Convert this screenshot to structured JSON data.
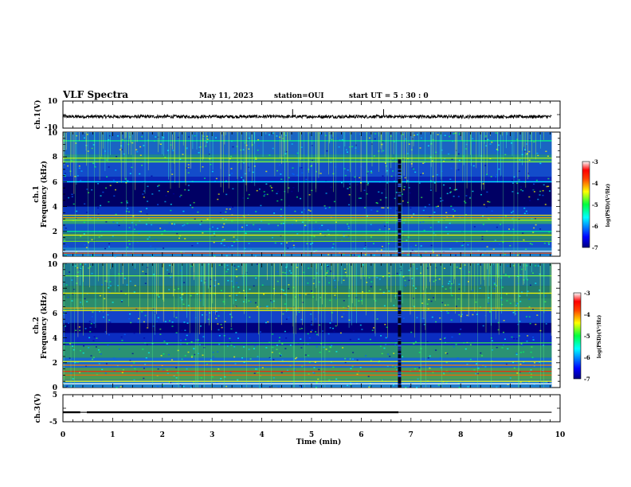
{
  "header": {
    "title": "VLF Spectra",
    "date": "May 11, 2023",
    "station": "station=OUI",
    "start": "start  UT =   5 : 30 : 0"
  },
  "chart_data": [
    {
      "type": "line",
      "name": "ch1-waveform",
      "ylabel": "ch.1(V)",
      "ylim": [
        -10,
        10
      ],
      "ytick_labels": [
        "10",
        "-10"
      ],
      "baseline": -1.5,
      "noise_amplitude": 1.2,
      "spikes": [
        {
          "t": 4.62,
          "v": 4
        },
        {
          "t": 6.45,
          "v": 4
        }
      ]
    },
    {
      "type": "heatmap",
      "name": "ch1-spectrogram",
      "ylabel": "Frequency (kHz)",
      "channel_label": "ch.1",
      "xlim": [
        0,
        10
      ],
      "ylim": [
        0,
        10
      ],
      "ytick_labels": [
        "0",
        "2",
        "4",
        "6",
        "8",
        "10"
      ],
      "data_end_min": 9.83,
      "gap_min": 6.77,
      "colorbar": {
        "label": "log(PSD)(V²/Hz)",
        "range": [
          -7,
          -3
        ],
        "ticks": [
          "-3",
          "-4",
          "-5",
          "-6",
          "-7"
        ]
      }
    },
    {
      "type": "heatmap",
      "name": "ch2-spectrogram",
      "ylabel": "Frequency (kHz)",
      "channel_label": "ch.2",
      "xlim": [
        0,
        10
      ],
      "ylim": [
        0,
        10
      ],
      "ytick_labels": [
        "0",
        "2",
        "4",
        "6",
        "8",
        "10"
      ],
      "data_end_min": 9.83,
      "gap_min": 6.77,
      "colorbar": {
        "label": "log(PSD)(V²/Hz)",
        "range": [
          -7,
          -3
        ],
        "ticks": [
          "-3",
          "-4",
          "-5",
          "-6",
          "-7"
        ]
      }
    },
    {
      "type": "line",
      "name": "ch3-level",
      "ylabel": "ch.3(V)",
      "ylim": [
        -5,
        5
      ],
      "ytick_labels": [
        "5",
        "-5"
      ],
      "segments": [
        {
          "t0": 0.0,
          "t1": 0.35,
          "v": -1.3
        },
        {
          "t0": 0.35,
          "t1": 0.48,
          "v": -1.7
        },
        {
          "t0": 0.48,
          "t1": 6.75,
          "v": -1.3
        },
        {
          "t0": 6.75,
          "t1": 9.83,
          "v": -1.7
        }
      ]
    }
  ],
  "xaxis": {
    "label": "Time  (min)",
    "range": [
      0,
      10
    ],
    "tick_labels": [
      "0",
      "1",
      "2",
      "3",
      "4",
      "5",
      "6",
      "7",
      "8",
      "9",
      "10"
    ]
  },
  "colors": {
    "spectrum_background": "#00007a",
    "waveform": "#000000"
  }
}
